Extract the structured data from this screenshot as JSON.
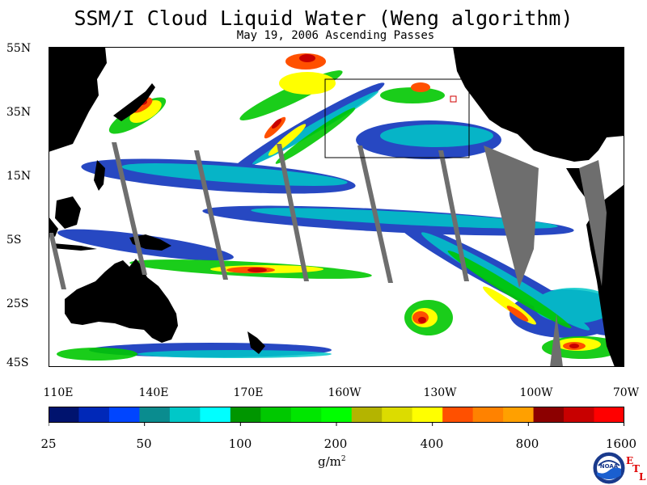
{
  "header": {
    "title": "SSM/I Cloud Liquid Water (Weng algorithm)",
    "subtitle": "May 19, 2006  Ascending Passes"
  },
  "map": {
    "lat_labels": [
      "55N",
      "35N",
      "15N",
      "5S",
      "25S",
      "45S"
    ],
    "lon_labels": [
      "110E",
      "140E",
      "170E",
      "160W",
      "130W",
      "100W",
      "70W"
    ]
  },
  "colorbar": {
    "colors": [
      "#00136e",
      "#0028b8",
      "#0045ff",
      "#0a8c8f",
      "#00c8c8",
      "#00ffff",
      "#009600",
      "#00c800",
      "#00e600",
      "#00ff00",
      "#b4b400",
      "#dcdc00",
      "#ffff00",
      "#ff5000",
      "#ff8200",
      "#ffa000",
      "#8c0000",
      "#c80000",
      "#ff0000"
    ],
    "tick_labels": [
      "25",
      "50",
      "100",
      "200",
      "400",
      "800",
      "1600"
    ],
    "units": "g/m",
    "units_exp": "2"
  },
  "logo": {
    "text": "NOAA",
    "letter_e": "E",
    "letter_t": "T",
    "letter_l": "L"
  },
  "colors": {
    "land": "#000000",
    "no_data_gap": "#6e6e6e",
    "ocean_clear": "#ffffff"
  }
}
